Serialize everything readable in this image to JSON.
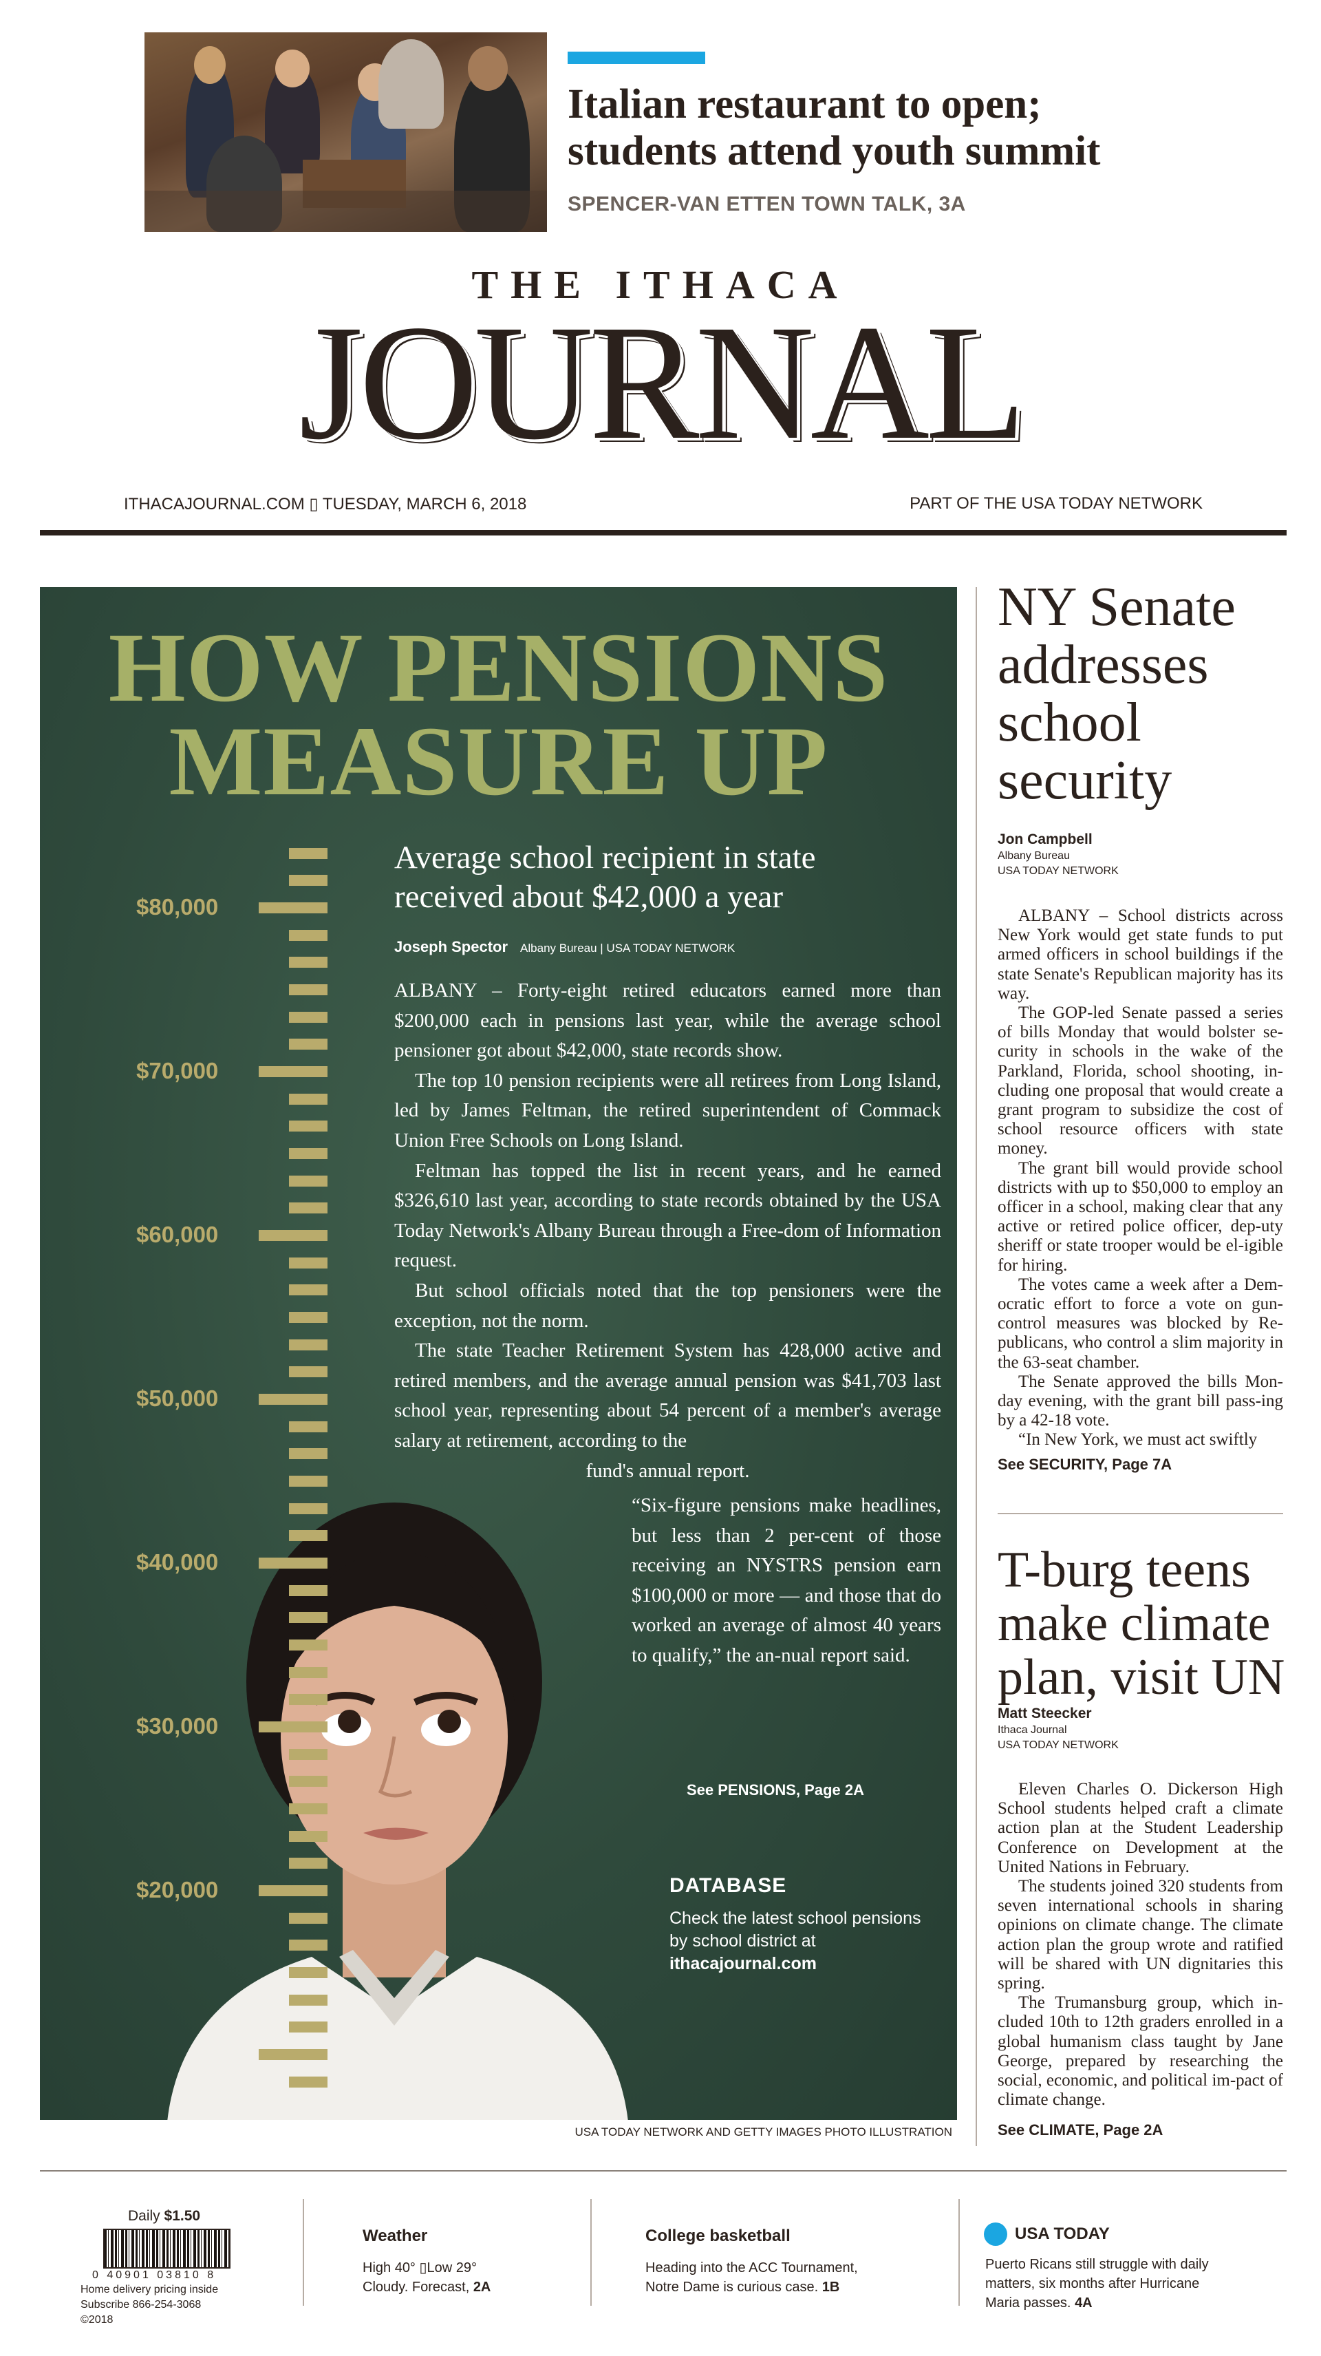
{
  "teaser": {
    "headline_line1": "Italian restaurant to open;",
    "headline_line2": "students attend youth summit",
    "kicker": "SPENCER-VAN ETTEN TOWN TALK, 3A"
  },
  "masthead": {
    "the_ithaca": "THE ITHACA",
    "journal": "JOURNAL",
    "dateline": "ITHACAJOURNAL.COM ▯ TUESDAY, MARCH 6, 2018",
    "network": "PART OF THE USA TODAY NETWORK"
  },
  "feature": {
    "title_line1": "HOW PENSIONS",
    "title_line2": "MEASURE UP",
    "scale_labels": [
      "$80,000",
      "$70,000",
      "$60,000",
      "$50,000",
      "$40,000",
      "$30,000",
      "$20,000"
    ],
    "subhead_line1": "Average school recipient in state",
    "subhead_line2": "received about $42,000 a year",
    "author": "Joseph Spector",
    "affiliation": "Albany Bureau | USA TODAY NETWORK",
    "paragraphs": [
      "ALBANY – Forty-eight retired educators earned more than $200,000 each in pensions last year, while the average school pensioner got about $42,000, state records show.",
      "The top 10 pension recipients were all retirees from Long Island, led by James Feltman, the retired superintendent of Commack Union Free Schools on Long Island.",
      "Feltman has topped the list in recent years, and he earned $326,610 last year, according to state records obtained by the USA Today Network's Albany Bureau through a Free-dom of Information request.",
      "But school officials noted that the top pensioners were the exception, not the norm.",
      "The state Teacher Retirement System has 428,000 active and retired members, and the average annual pension was $41,703 last school year, representing about 54 percent of a member's average salary at retirement, according to the"
    ],
    "paragraph_tail": "fund's annual report.",
    "quote": "“Six-figure pensions make headlines, but less than 2 per-cent of those receiving an NYSTRS pension earn $100,000 or more — and those that do worked an average of almost 40 years to qualify,” the an-nual report said.",
    "jump": "See PENSIONS, Page 2A",
    "database_head": "DATABASE",
    "database_text": "Check the latest school pensions by school district at",
    "database_link": "ithacajournal.com",
    "credit": "USA TODAY NETWORK AND GETTY IMAGES PHOTO ILLUSTRATION"
  },
  "story1": {
    "headline_lines": [
      "NY Senate",
      "addresses",
      "school",
      "security"
    ],
    "author": "Jon Campbell",
    "affiliation_line1": "Albany Bureau",
    "affiliation_line2": "USA TODAY NETWORK",
    "paragraphs": [
      "ALBANY – School districts across New York would get state funds to put armed officers in school buildings if the state Senate's Republican majority has its way.",
      "The GOP-led Senate passed a series of bills Monday that would bolster se-curity in schools in the wake of the Parkland, Florida, school shooting, in-cluding one proposal that would create a grant program to subsidize the cost of school resource officers with state money.",
      "The grant bill would provide school districts with up to $50,000 to employ an officer in a school, making clear that any active or retired police officer, dep-uty sheriff or state trooper would be el-igible for hiring.",
      "The votes came a week after a Dem-ocratic effort to force a vote on gun-control measures was blocked by Re-publicans, who control a slim majority in the 63-seat chamber.",
      "The Senate approved the bills Mon-day evening, with the grant bill pass-ing by a 42-18 vote.",
      "“In New York, we must act swiftly"
    ],
    "jump": "See SECURITY, Page 7A"
  },
  "story2": {
    "headline_lines": [
      "T-burg teens",
      "make climate",
      "plan, visit UN"
    ],
    "author": "Matt Steecker",
    "affiliation_line1": "Ithaca Journal",
    "affiliation_line2": "USA TODAY NETWORK",
    "paragraphs": [
      "Eleven Charles O. Dickerson High School students helped craft a climate action plan at the Student Leadership Conference on Development at the United Nations in February.",
      "The students joined 320 students from seven international schools in sharing opinions on climate change. The climate action plan the group wrote and ratified will be shared with UN dignitaries this spring.",
      "The Trumansburg group, which in-cluded 10th to 12th graders enrolled in a global humanism class taught by Jane George, prepared by researching the social, economic, and political im-pact of climate change."
    ],
    "jump": "See CLIMATE, Page 2A"
  },
  "footer": {
    "daily_label": "Daily",
    "price": "$1.50",
    "upc": "0 40901 03810 8",
    "delivery": "Home delivery pricing inside",
    "subscribe": "Subscribe 866-254-3068",
    "copyright": "©2018",
    "weather_head": "Weather",
    "weather_line1": "High 40° ▯Low 29°",
    "weather_line2": "Cloudy. Forecast,",
    "weather_page": "2A",
    "college_head": "College basketball",
    "college_line1": "Heading into the ACC Tournament,",
    "college_line2": "Notre Dame is curious case.",
    "college_page": "1B",
    "usa_head": "USA TODAY",
    "usa_line1": "Puerto Ricans still struggle with daily",
    "usa_line2": "matters, six months after Hurricane",
    "usa_line3": "Maria passes.",
    "usa_page": "4A"
  },
  "colors": {
    "accent_blue": "#1ba6e1",
    "panel_green": "#2f4a3c",
    "title_olive": "#a6b068",
    "ruler_tan": "#b9ab6c",
    "ink": "#2b211c"
  }
}
